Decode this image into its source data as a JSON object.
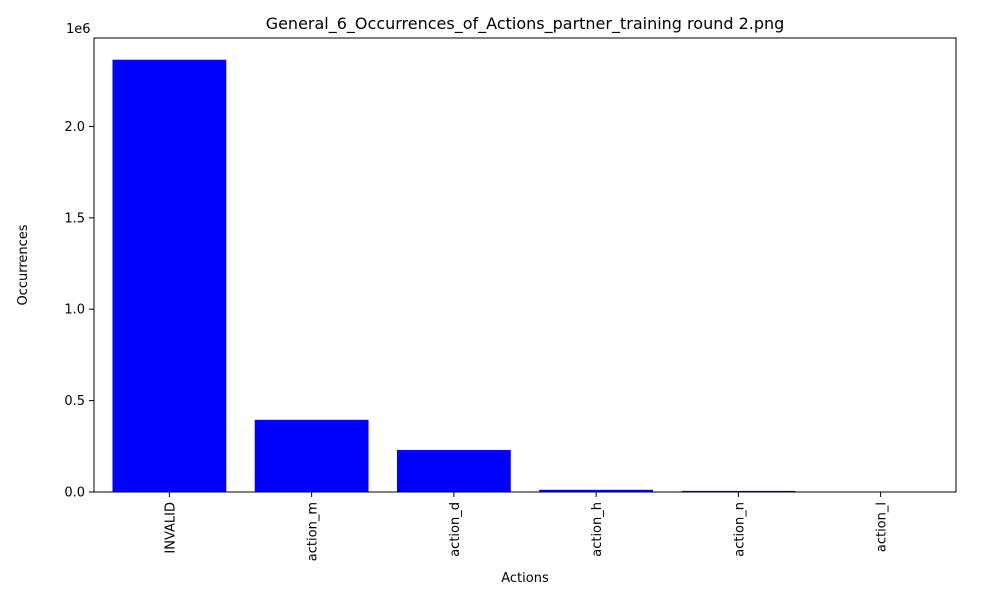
{
  "chart_data": {
    "type": "bar",
    "title": "General_6_Occurrences_of_Actions_partner_training round 2.png",
    "xlabel": "Actions",
    "ylabel": "Occurrences",
    "y_multiplier_label": "1e6",
    "categories": [
      "INVALID",
      "action_m",
      "action_d",
      "action_h",
      "action_n",
      "action_l"
    ],
    "values": [
      2365000,
      395000,
      230000,
      12000,
      6000,
      1000
    ],
    "ylim": [
      0,
      2484000
    ],
    "yticks": [
      0,
      500000,
      1000000,
      1500000,
      2000000
    ],
    "ytick_labels": [
      "0.0",
      "0.5",
      "1.0",
      "1.5",
      "2.0"
    ],
    "bar_color": "#0000ff",
    "grid": false,
    "legend": "none"
  }
}
